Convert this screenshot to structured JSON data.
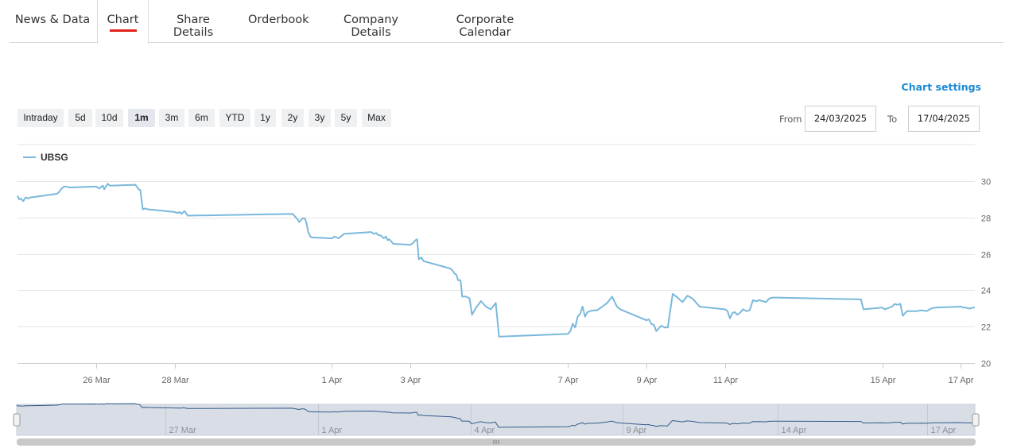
{
  "tabs": [
    {
      "label": "News & Data",
      "active": false
    },
    {
      "label": "Chart",
      "active": true
    },
    {
      "label": "Share Details",
      "active": false
    },
    {
      "label": "Orderbook",
      "active": false
    },
    {
      "label": "Company Details",
      "active": false
    },
    {
      "label": "Corporate Calendar",
      "active": false
    }
  ],
  "chart_settings_label": "Chart settings",
  "ranges": [
    {
      "label": "Intraday",
      "selected": false
    },
    {
      "label": "5d",
      "selected": false
    },
    {
      "label": "10d",
      "selected": false
    },
    {
      "label": "1m",
      "selected": true
    },
    {
      "label": "3m",
      "selected": false
    },
    {
      "label": "6m",
      "selected": false
    },
    {
      "label": "YTD",
      "selected": false
    },
    {
      "label": "1y",
      "selected": false
    },
    {
      "label": "2y",
      "selected": false
    },
    {
      "label": "3y",
      "selected": false
    },
    {
      "label": "5y",
      "selected": false
    },
    {
      "label": "Max",
      "selected": false
    }
  ],
  "date_range": {
    "from_label": "From",
    "from_value": "24/03/2025",
    "to_label": "To",
    "to_value": "17/04/2025"
  },
  "colors": {
    "line": "#7ab9dc",
    "navigator_line": "#335a8c",
    "accent": "#e2231a",
    "link": "#1a8ad4"
  },
  "chart_data": {
    "type": "line",
    "title": "",
    "xlabel": "",
    "ylabel": "",
    "legend": "top-left",
    "grid": true,
    "ylim": [
      20,
      30
    ],
    "yticks": [
      20,
      22,
      24,
      26,
      28,
      30
    ],
    "xlim": [
      "2025-03-24 09:00",
      "2025-04-17 17:30"
    ],
    "xticks": [
      {
        "label": "26 Mar",
        "t": "2025-03-26 09:00"
      },
      {
        "label": "28 Mar",
        "t": "2025-03-28 09:00"
      },
      {
        "label": "1 Apr",
        "t": "2025-04-01 09:00"
      },
      {
        "label": "3 Apr",
        "t": "2025-04-03 09:00"
      },
      {
        "label": "7 Apr",
        "t": "2025-04-07 09:00"
      },
      {
        "label": "9 Apr",
        "t": "2025-04-09 09:00"
      },
      {
        "label": "11 Apr",
        "t": "2025-04-11 09:00"
      },
      {
        "label": "15 Apr",
        "t": "2025-04-15 09:00"
      },
      {
        "label": "17 Apr",
        "t": "2025-04-17 09:00"
      }
    ],
    "navigator_ticks": [
      "27 Mar",
      "1 Apr",
      "4 Apr",
      "9 Apr",
      "14 Apr",
      "17 Apr"
    ],
    "series": [
      {
        "name": "UBSG",
        "points": [
          [
            "2025-03-24 09:00",
            29.2
          ],
          [
            "2025-03-24 10:00",
            29.0
          ],
          [
            "2025-03-24 11:00",
            29.05
          ],
          [
            "2025-03-24 12:30",
            28.9
          ],
          [
            "2025-03-24 14:00",
            29.1
          ],
          [
            "2025-03-24 15:30",
            29.05
          ],
          [
            "2025-03-24 17:00",
            29.1
          ],
          [
            "2025-03-25 09:00",
            29.3
          ],
          [
            "2025-03-25 10:30",
            29.4
          ],
          [
            "2025-03-25 12:00",
            29.6
          ],
          [
            "2025-03-25 13:30",
            29.7
          ],
          [
            "2025-03-25 15:00",
            29.7
          ],
          [
            "2025-03-25 16:30",
            29.65
          ],
          [
            "2025-03-26 09:00",
            29.7
          ],
          [
            "2025-03-26 11:00",
            29.6
          ],
          [
            "2025-03-26 13:00",
            29.75
          ],
          [
            "2025-03-26 14:00",
            29.55
          ],
          [
            "2025-03-26 16:00",
            29.85
          ],
          [
            "2025-03-26 17:30",
            29.75
          ],
          [
            "2025-03-27 09:00",
            29.8
          ],
          [
            "2025-03-27 11:00",
            29.55
          ],
          [
            "2025-03-27 12:00",
            29.5
          ],
          [
            "2025-03-27 13:30",
            28.45
          ],
          [
            "2025-03-27 15:00",
            28.5
          ],
          [
            "2025-03-27 16:30",
            28.45
          ],
          [
            "2025-03-28 09:00",
            28.3
          ],
          [
            "2025-03-28 10:30",
            28.25
          ],
          [
            "2025-03-28 12:00",
            28.3
          ],
          [
            "2025-03-28 13:00",
            28.2
          ],
          [
            "2025-03-28 15:00",
            28.35
          ],
          [
            "2025-03-28 17:00",
            28.1
          ],
          [
            "2025-03-31 09:00",
            28.2
          ],
          [
            "2025-03-31 10:30",
            28.05
          ],
          [
            "2025-03-31 12:00",
            27.9
          ],
          [
            "2025-03-31 13:00",
            27.75
          ],
          [
            "2025-03-31 15:00",
            27.95
          ],
          [
            "2025-03-31 16:30",
            27.95
          ],
          [
            "2025-03-31 17:30",
            27.65
          ],
          [
            "2025-03-31 18:30",
            27.2
          ],
          [
            "2025-03-31 19:30",
            27.0
          ],
          [
            "2025-03-31 20:30",
            26.9
          ],
          [
            "2025-03-31 22:00",
            26.9
          ],
          [
            "2025-04-01 09:00",
            26.85
          ],
          [
            "2025-04-01 10:30",
            26.95
          ],
          [
            "2025-04-01 12:00",
            26.9
          ],
          [
            "2025-04-01 13:00",
            26.85
          ],
          [
            "2025-04-01 15:00",
            27.0
          ],
          [
            "2025-04-01 16:30",
            27.1
          ],
          [
            "2025-04-02 09:00",
            27.2
          ],
          [
            "2025-04-02 10:30",
            27.1
          ],
          [
            "2025-04-02 12:00",
            27.15
          ],
          [
            "2025-04-02 13:00",
            27.05
          ],
          [
            "2025-04-02 15:00",
            27.0
          ],
          [
            "2025-04-02 16:30",
            26.85
          ],
          [
            "2025-04-02 18:00",
            26.95
          ],
          [
            "2025-04-02 19:00",
            26.75
          ],
          [
            "2025-04-02 20:00",
            26.8
          ],
          [
            "2025-04-02 21:00",
            26.7
          ],
          [
            "2025-04-02 22:30",
            26.55
          ],
          [
            "2025-04-03 09:00",
            26.5
          ],
          [
            "2025-04-03 10:30",
            26.6
          ],
          [
            "2025-04-03 12:00",
            26.75
          ],
          [
            "2025-04-03 13:00",
            26.8
          ],
          [
            "2025-04-03 14:00",
            25.7
          ],
          [
            "2025-04-03 15:30",
            25.8
          ],
          [
            "2025-04-03 17:00",
            25.6
          ],
          [
            "2025-04-04 09:00",
            25.2
          ],
          [
            "2025-04-04 10:30",
            25.1
          ],
          [
            "2025-04-04 12:00",
            24.9
          ],
          [
            "2025-04-04 13:00",
            24.85
          ],
          [
            "2025-04-04 14:00",
            24.55
          ],
          [
            "2025-04-04 15:30",
            24.55
          ],
          [
            "2025-04-04 16:30",
            23.65
          ],
          [
            "2025-04-04 19:00",
            23.65
          ],
          [
            "2025-04-04 21:00",
            23.55
          ],
          [
            "2025-04-04 22:30",
            22.65
          ],
          [
            "2025-04-05 01:00",
            23.05
          ],
          [
            "2025-04-05 04:00",
            23.4
          ],
          [
            "2025-04-05 07:00",
            23.1
          ],
          [
            "2025-04-05 10:00",
            22.95
          ],
          [
            "2025-04-05 13:00",
            23.3
          ],
          [
            "2025-04-05 15:00",
            21.45
          ],
          [
            "2025-04-07 09:00",
            21.6
          ],
          [
            "2025-04-07 10:30",
            21.75
          ],
          [
            "2025-04-07 12:00",
            22.15
          ],
          [
            "2025-04-07 13:30",
            21.95
          ],
          [
            "2025-04-07 15:00",
            22.55
          ],
          [
            "2025-04-07 16:30",
            22.7
          ],
          [
            "2025-04-07 18:00",
            23.1
          ],
          [
            "2025-04-07 19:30",
            22.55
          ],
          [
            "2025-04-07 21:00",
            22.8
          ],
          [
            "2025-04-07 22:30",
            22.85
          ],
          [
            "2025-04-08 01:00",
            22.9
          ],
          [
            "2025-04-08 03:00",
            22.9
          ],
          [
            "2025-04-08 06:00",
            23.1
          ],
          [
            "2025-04-08 09:00",
            23.3
          ],
          [
            "2025-04-08 12:00",
            23.65
          ],
          [
            "2025-04-08 15:00",
            23.1
          ],
          [
            "2025-04-08 17:00",
            22.95
          ],
          [
            "2025-04-09 09:00",
            22.35
          ],
          [
            "2025-04-09 10:30",
            22.4
          ],
          [
            "2025-04-09 12:00",
            22.15
          ],
          [
            "2025-04-09 13:30",
            22.1
          ],
          [
            "2025-04-09 15:00",
            21.75
          ],
          [
            "2025-04-09 16:30",
            21.9
          ],
          [
            "2025-04-09 18:00",
            22.05
          ],
          [
            "2025-04-09 20:00",
            21.95
          ],
          [
            "2025-04-09 22:00",
            21.95
          ],
          [
            "2025-04-10 01:00",
            23.8
          ],
          [
            "2025-04-10 04:00",
            23.6
          ],
          [
            "2025-04-10 07:00",
            23.35
          ],
          [
            "2025-04-10 10:00",
            23.7
          ],
          [
            "2025-04-10 13:00",
            23.55
          ],
          [
            "2025-04-10 16:00",
            23.25
          ],
          [
            "2025-04-10 17:30",
            23.1
          ],
          [
            "2025-04-11 09:00",
            22.95
          ],
          [
            "2025-04-11 10:30",
            22.85
          ],
          [
            "2025-04-11 12:00",
            22.45
          ],
          [
            "2025-04-11 13:30",
            22.75
          ],
          [
            "2025-04-11 15:00",
            22.8
          ],
          [
            "2025-04-11 16:30",
            22.65
          ],
          [
            "2025-04-11 18:00",
            22.75
          ],
          [
            "2025-04-11 20:00",
            22.95
          ],
          [
            "2025-04-11 22:00",
            22.85
          ],
          [
            "2025-04-12 00:00",
            22.9
          ],
          [
            "2025-04-12 02:00",
            23.45
          ],
          [
            "2025-04-12 04:00",
            23.4
          ],
          [
            "2025-04-12 06:00",
            23.45
          ],
          [
            "2025-04-12 08:00",
            23.4
          ],
          [
            "2025-04-12 10:00",
            23.35
          ],
          [
            "2025-04-12 12:00",
            23.55
          ],
          [
            "2025-04-12 14:00",
            23.6
          ],
          [
            "2025-04-12 16:00",
            23.6
          ],
          [
            "2025-04-14 20:00",
            23.5
          ],
          [
            "2025-04-14 21:30",
            22.95
          ],
          [
            "2025-04-15 09:00",
            23.05
          ],
          [
            "2025-04-15 10:30",
            22.95
          ],
          [
            "2025-04-15 12:00",
            23.0
          ],
          [
            "2025-04-15 13:30",
            23.05
          ],
          [
            "2025-04-15 15:00",
            23.1
          ],
          [
            "2025-04-15 16:30",
            23.25
          ],
          [
            "2025-04-15 18:00",
            23.2
          ],
          [
            "2025-04-15 20:00",
            23.25
          ],
          [
            "2025-04-15 21:30",
            22.6
          ],
          [
            "2025-04-16 00:00",
            22.85
          ],
          [
            "2025-04-16 03:00",
            22.85
          ],
          [
            "2025-04-16 06:00",
            22.85
          ],
          [
            "2025-04-16 09:00",
            22.9
          ],
          [
            "2025-04-16 12:00",
            22.85
          ],
          [
            "2025-04-16 15:00",
            23.0
          ],
          [
            "2025-04-16 17:30",
            23.05
          ],
          [
            "2025-04-17 09:00",
            23.1
          ],
          [
            "2025-04-17 10:30",
            23.05
          ],
          [
            "2025-04-17 12:00",
            23.05
          ],
          [
            "2025-04-17 13:30",
            23.0
          ],
          [
            "2025-04-17 15:00",
            23.0
          ],
          [
            "2025-04-17 16:00",
            23.05
          ],
          [
            "2025-04-17 17:30",
            23.05
          ]
        ]
      }
    ]
  }
}
